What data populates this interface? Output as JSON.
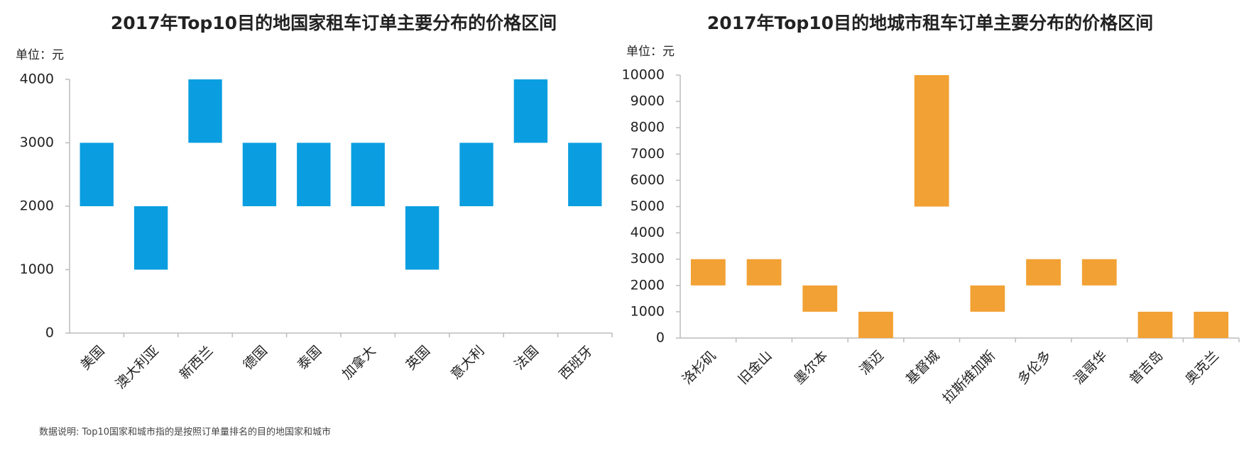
{
  "chart_data": [
    {
      "type": "range-bar",
      "title": "2017年Top10目的地国家租车订单主要分布的价格区间",
      "unit_label": "单位：元",
      "categories": [
        "美国",
        "澳大利亚",
        "新西兰",
        "德国",
        "泰国",
        "加拿大",
        "英国",
        "意大利",
        "法国",
        "西班牙"
      ],
      "low": [
        2000,
        1000,
        3000,
        2000,
        2000,
        2000,
        1000,
        2000,
        3000,
        2000
      ],
      "high": [
        3000,
        2000,
        4000,
        3000,
        3000,
        3000,
        2000,
        3000,
        4000,
        3000
      ],
      "color": "#0a9ee0",
      "ylim": [
        0,
        4000
      ],
      "yticks": [
        0,
        1000,
        2000,
        3000,
        4000
      ]
    },
    {
      "type": "range-bar",
      "title": "2017年Top10目的地城市租车订单主要分布的价格区间",
      "unit_label": "单位：元",
      "categories": [
        "洛杉矶",
        "旧金山",
        "墨尔本",
        "清迈",
        "基督城",
        "拉斯维加斯",
        "多伦多",
        "温哥华",
        "普吉岛",
        "奥克兰"
      ],
      "low": [
        2000,
        2000,
        1000,
        0,
        5000,
        1000,
        2000,
        2000,
        0,
        0
      ],
      "high": [
        3000,
        3000,
        2000,
        1000,
        10000,
        2000,
        3000,
        3000,
        1000,
        1000
      ],
      "color": "#f2a134",
      "ylim": [
        0,
        10000
      ],
      "yticks": [
        0,
        1000,
        2000,
        3000,
        4000,
        5000,
        6000,
        7000,
        8000,
        9000,
        10000
      ]
    }
  ],
  "footnote": "数据说明: Top10国家和城市指的是按照订单量排名的目的地国家和城市"
}
